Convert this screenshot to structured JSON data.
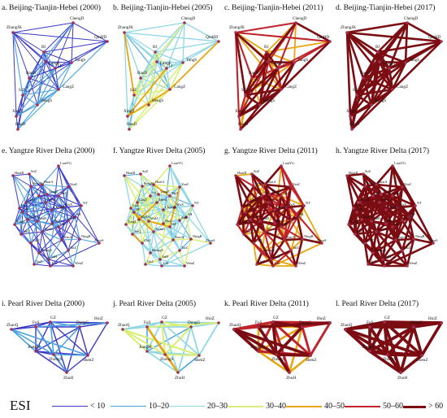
{
  "figure": {
    "panels": [
      {
        "id": "a",
        "title": "a. Beijing-Tianjin-Hebei (2000)",
        "region": "bth",
        "level": 0
      },
      {
        "id": "b",
        "title": "b. Beijing-Tianjin-Hebei (2005)",
        "region": "bth",
        "level": 1
      },
      {
        "id": "c",
        "title": "c. Beijing-Tianjin-Hebei (2011)",
        "region": "bth",
        "level": 2
      },
      {
        "id": "d",
        "title": "d. Beijing-Tianjin-Hebei (2017)",
        "region": "bth",
        "level": 3
      },
      {
        "id": "e",
        "title": "e. Yangtze River Delta (2000)",
        "region": "yrd",
        "level": 0
      },
      {
        "id": "f",
        "title": "f. Yangtze River Delta (2005)",
        "region": "yrd",
        "level": 1
      },
      {
        "id": "g",
        "title": "g. Yangtze River Delta (2011)",
        "region": "yrd",
        "level": 2
      },
      {
        "id": "h",
        "title": "h. Yangtze River Delta (2017)",
        "region": "yrd",
        "level": 3
      },
      {
        "id": "i",
        "title": "i. Pearl River Delta (2000)",
        "region": "prd",
        "level": 0
      },
      {
        "id": "j",
        "title": "j. Pearl River Delta (2005)",
        "region": "prd",
        "level": 1
      },
      {
        "id": "k",
        "title": "k. Pearl River Delta (2011)",
        "region": "prd",
        "level": 2
      },
      {
        "id": "l",
        "title": "l. Pearl River Delta (2017)",
        "region": "prd",
        "level": 3
      }
    ],
    "regions": {
      "bth": {
        "nodes": [
          {
            "name": "ChengD"
          },
          {
            "name": "ZhangJK"
          },
          {
            "name": "QinHD"
          },
          {
            "name": "BJ"
          },
          {
            "name": "TangS"
          },
          {
            "name": "TJ"
          },
          {
            "name": "LangF"
          },
          {
            "name": "BaoD"
          },
          {
            "name": "CangZ"
          },
          {
            "name": "HengS"
          },
          {
            "name": "SJZ"
          },
          {
            "name": "XingT"
          },
          {
            "name": "HanD"
          }
        ]
      },
      "yrd": {
        "nodes": [
          {
            "name": "LianYG"
          },
          {
            "name": "HuaiB"
          },
          {
            "name": "SuZ"
          },
          {
            "name": "YanC"
          },
          {
            "name": "BengB"
          },
          {
            "name": "HuaiA"
          },
          {
            "name": "YangZ"
          },
          {
            "name": "TaiZ"
          },
          {
            "name": "NT"
          },
          {
            "name": "SH"
          },
          {
            "name": "NJ"
          },
          {
            "name": "WuX"
          },
          {
            "name": "ChuZ"
          },
          {
            "name": "HF"
          },
          {
            "name": "MaAS"
          },
          {
            "name": "WuH"
          },
          {
            "name": "AnQ"
          },
          {
            "name": "ChiZ"
          },
          {
            "name": "HZ"
          },
          {
            "name": "NingB"
          },
          {
            "name": "ShaoX"
          },
          {
            "name": "ZhouS"
          },
          {
            "name": "HuangS"
          },
          {
            "name": "JinH"
          },
          {
            "name": "TaiZ"
          },
          {
            "name": "LiS"
          },
          {
            "name": "WenZ"
          },
          {
            "name": "ChangZ"
          },
          {
            "name": "XuanC"
          },
          {
            "name": "HuZ"
          },
          {
            "name": "JiaX"
          },
          {
            "name": "TongL"
          },
          {
            "name": "ZhenJ"
          },
          {
            "name": "LuA"
          },
          {
            "name": "QuZ"
          }
        ]
      },
      "prd": {
        "nodes": [
          {
            "name": "ZhaoQ"
          },
          {
            "name": "FoS"
          },
          {
            "name": "GZ"
          },
          {
            "name": "DongG"
          },
          {
            "name": "HuiZ"
          },
          {
            "name": "JiangM"
          },
          {
            "name": "ZhongS"
          },
          {
            "name": "ShenZ"
          },
          {
            "name": "ZhuH"
          }
        ]
      }
    },
    "legend": {
      "label": "ESI",
      "items": [
        {
          "text": "< 10",
          "color": "#3b3bc8",
          "width": 1.0
        },
        {
          "text": "10–20",
          "color": "#4aa3e0",
          "width": 1.1
        },
        {
          "text": "20–30",
          "color": "#8fd8e6",
          "width": 1.3
        },
        {
          "text": "30–40",
          "color": "#d8ee78",
          "width": 1.5
        },
        {
          "text": "40–50",
          "color": "#e8a50e",
          "width": 1.8
        },
        {
          "text": "50–60",
          "color": "#c0232b",
          "width": 2.1
        },
        {
          "text": "> 60",
          "color": "#7a0c12",
          "width": 2.6
        }
      ]
    },
    "node_color": "#a33050"
  }
}
